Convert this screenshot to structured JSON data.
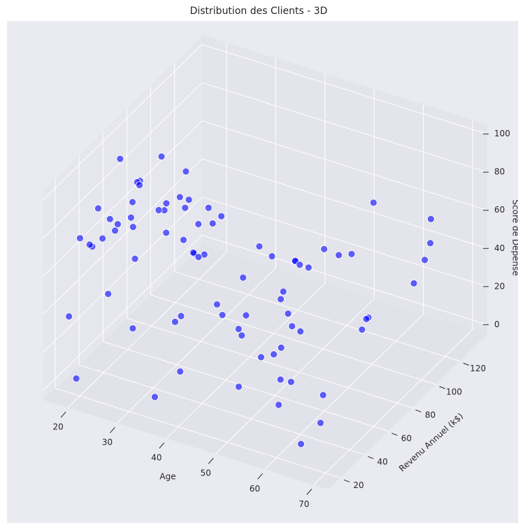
{
  "chart_data": {
    "type": "scatter3d",
    "title": "Distribution des Clients - 3D",
    "xlabel": "Age",
    "ylabel": "Revenu Annuel (k$)",
    "zlabel": "Score de Dépense",
    "color": "#0000ff",
    "grid": true,
    "xlim": [
      15,
      73
    ],
    "xticks": [
      20,
      30,
      40,
      50,
      60,
      70
    ],
    "ylim": [
      10,
      143
    ],
    "yticks": [
      20,
      40,
      60,
      80,
      100,
      120
    ],
    "zlim": [
      -5,
      105
    ],
    "zticks": [
      0,
      20,
      40,
      60,
      80,
      100
    ],
    "x": [
      19,
      21,
      20,
      23,
      31,
      22,
      35,
      23,
      64,
      30,
      67,
      35,
      58,
      24,
      37,
      22,
      35,
      20,
      52,
      35,
      35,
      25,
      46,
      31,
      54,
      29,
      45,
      35,
      40,
      23,
      60,
      21,
      53,
      18,
      49,
      21,
      42,
      30,
      36,
      20,
      65,
      24,
      48,
      31,
      49,
      24,
      50,
      27,
      29,
      31,
      49,
      33,
      31,
      59,
      50,
      47,
      51,
      69,
      27,
      53,
      70,
      19,
      67,
      54,
      63,
      18,
      43,
      68,
      19,
      32,
      70,
      47,
      60,
      60,
      59,
      26,
      45,
      40,
      23,
      49
    ],
    "y": [
      15,
      16,
      17,
      18,
      19,
      20,
      21,
      23,
      24,
      25,
      28,
      29,
      30,
      33,
      34,
      37,
      38,
      39,
      40,
      42,
      43,
      44,
      46,
      47,
      48,
      49,
      50,
      54,
      57,
      58,
      59,
      60,
      61,
      62,
      63,
      64,
      65,
      67,
      69,
      70,
      71,
      72,
      73,
      74,
      75,
      76,
      77,
      78,
      78,
      79,
      81,
      85,
      86,
      87,
      88,
      93,
      97,
      98,
      99,
      101,
      103,
      113,
      120,
      126,
      137,
      60,
      62,
      64,
      67,
      70,
      54,
      48,
      40,
      33,
      28,
      19,
      78,
      88,
      99,
      71
    ],
    "z": [
      39,
      81,
      6,
      77,
      40,
      76,
      6,
      94,
      3,
      72,
      14,
      99,
      15,
      77,
      13,
      79,
      35,
      66,
      29,
      98,
      35,
      73,
      5,
      73,
      14,
      82,
      32,
      61,
      31,
      87,
      4,
      73,
      4,
      92,
      14,
      81,
      17,
      73,
      26,
      75,
      35,
      92,
      36,
      61,
      28,
      65,
      55,
      47,
      42,
      42,
      52,
      60,
      54,
      60,
      45,
      41,
      50,
      46,
      51,
      46,
      56,
      55,
      52,
      59,
      51,
      59,
      50,
      48,
      59,
      47,
      55,
      42,
      49,
      56,
      47,
      54,
      53,
      48,
      52,
      42
    ]
  }
}
